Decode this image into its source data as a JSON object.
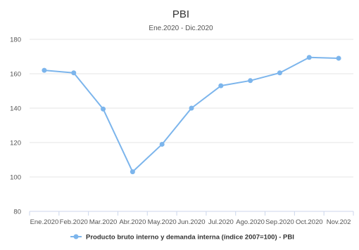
{
  "chart_data": {
    "type": "line",
    "title": "PBI",
    "subtitle": "Ene.2020 - Dic.2020",
    "xlabel": "",
    "ylabel": "",
    "categories": [
      "Ene.2020",
      "Feb.2020",
      "Mar.2020",
      "Abr.2020",
      "May.2020",
      "Jun.2020",
      "Jul.2020",
      "Ago.2020",
      "Sep.2020",
      "Oct.2020",
      "Nov.202"
    ],
    "series": [
      {
        "name": "Producto bruto interno y demanda interna (índice 2007=100) - PBI",
        "values": [
          162,
          160.5,
          139.5,
          103,
          119,
          140,
          153,
          156,
          160.5,
          169.5,
          169
        ],
        "color": "#7cb5ec"
      }
    ],
    "ylim": [
      80,
      180
    ],
    "yticks": [
      80,
      100,
      120,
      140,
      160,
      180
    ],
    "grid": true,
    "legend_position": "bottom-center"
  }
}
